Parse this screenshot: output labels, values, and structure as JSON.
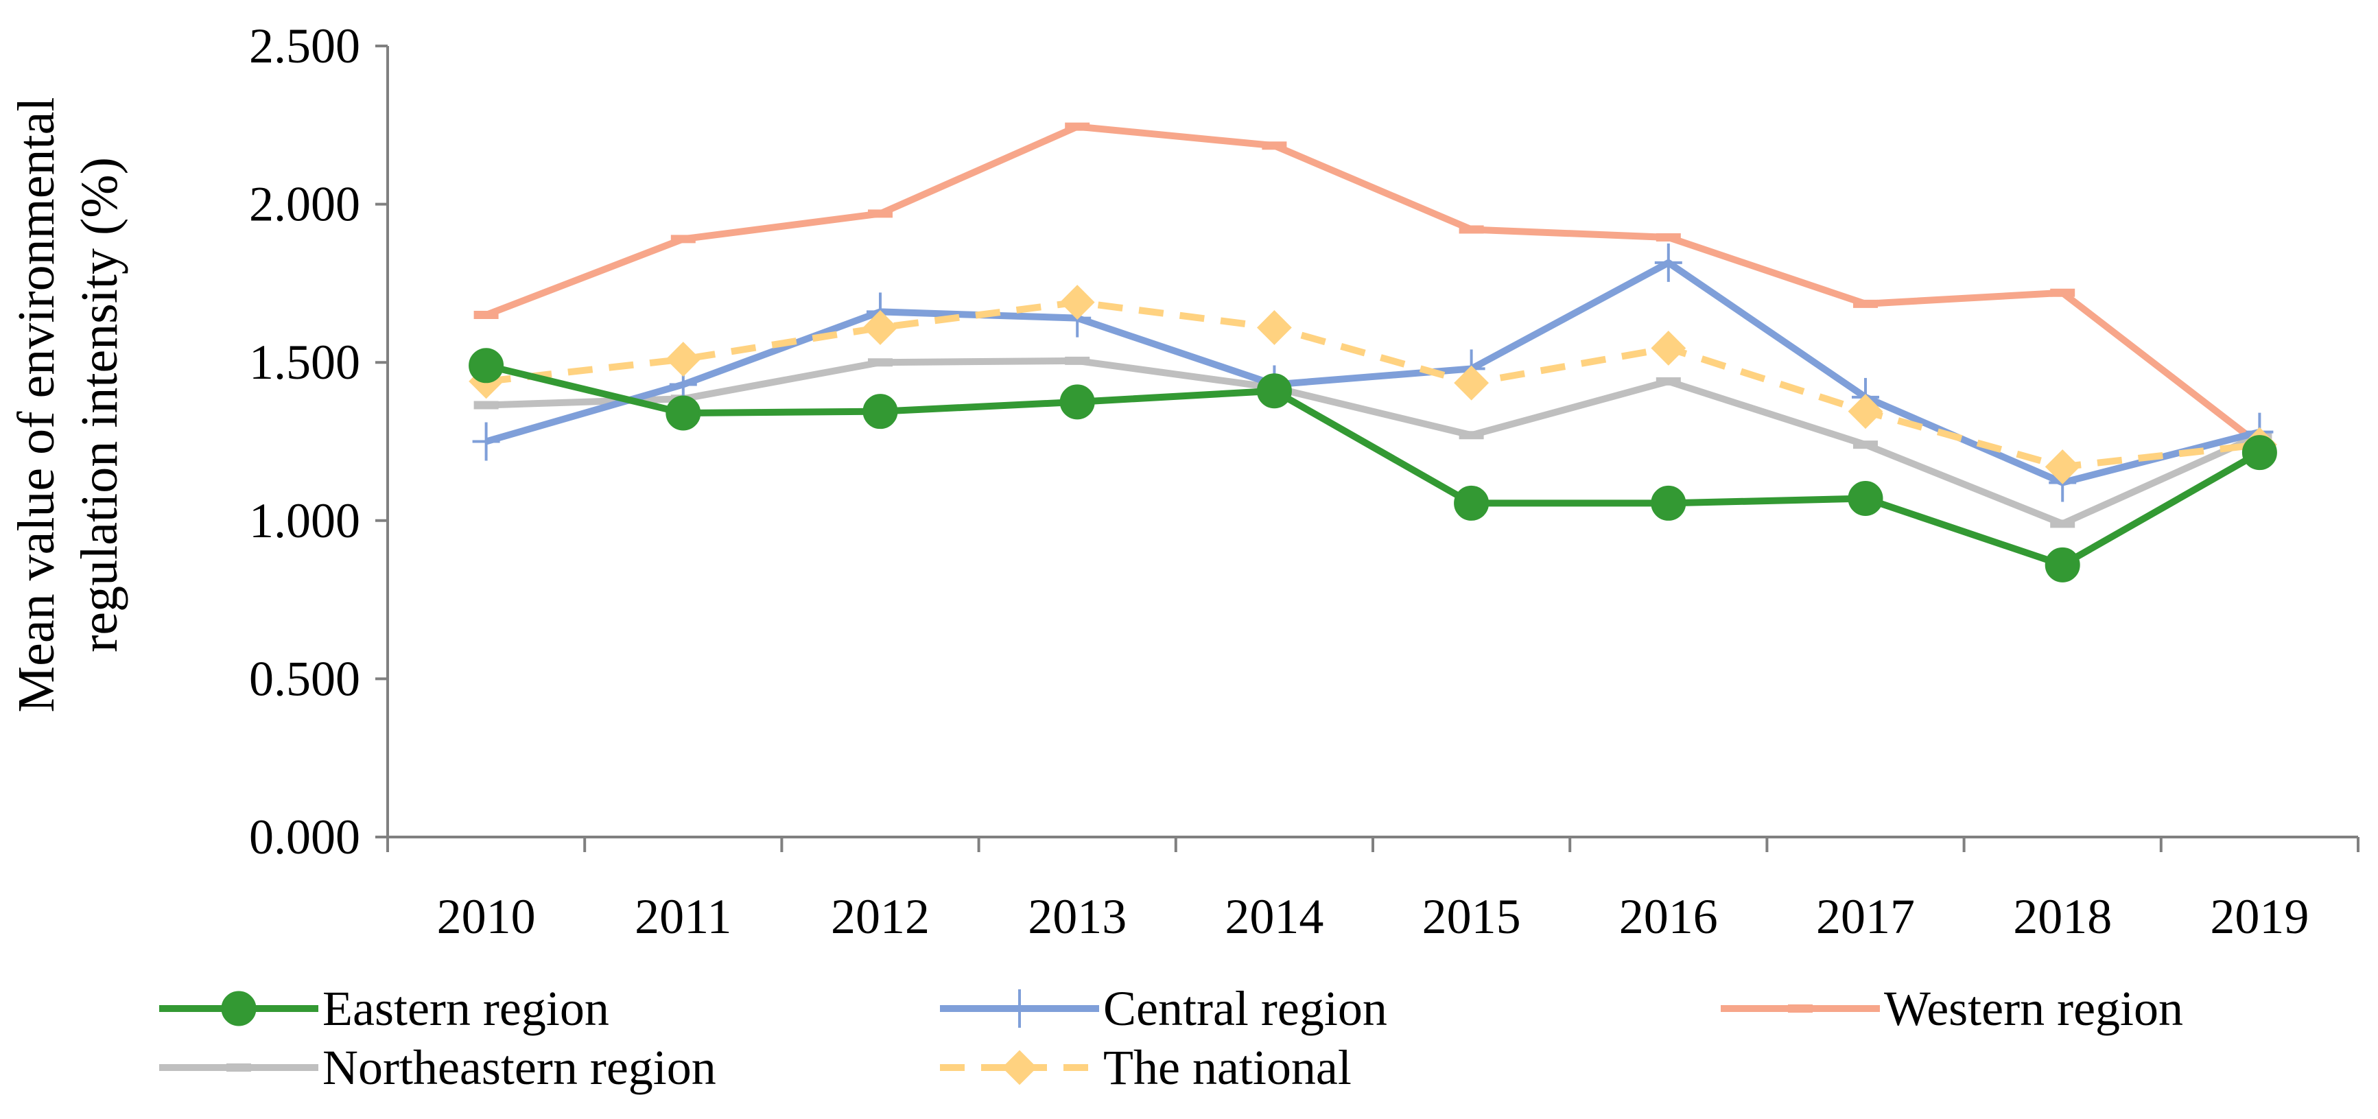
{
  "chart_data": {
    "type": "line",
    "title": "",
    "xlabel": "",
    "ylabel_lines": [
      "Mean value of environmental",
      "regulation intensity (%)"
    ],
    "categories": [
      "2010",
      "2011",
      "2012",
      "2013",
      "2014",
      "2015",
      "2016",
      "2017",
      "2018",
      "2019"
    ],
    "ylim": [
      0,
      2.5
    ],
    "yticks": [
      "0.000",
      "0.500",
      "1.000",
      "1.500",
      "2.000",
      "2.500"
    ],
    "ytick_values": [
      0,
      0.5,
      1.0,
      1.5,
      2.0,
      2.5
    ],
    "grid": false,
    "legend_position": "bottom",
    "series": [
      {
        "name": "Eastern region",
        "color": "#339933",
        "marker": "circle",
        "dash": "solid",
        "values": [
          1.49,
          1.34,
          1.345,
          1.375,
          1.41,
          1.055,
          1.055,
          1.07,
          0.86,
          1.215
        ]
      },
      {
        "name": "Central region",
        "color": "#7F9FD9",
        "marker": "plus",
        "dash": "solid",
        "values": [
          1.25,
          1.43,
          1.66,
          1.64,
          1.43,
          1.48,
          1.815,
          1.39,
          1.12,
          1.28
        ]
      },
      {
        "name": "Western region",
        "color": "#F7A68A",
        "marker": "dash",
        "dash": "solid",
        "values": [
          1.65,
          1.89,
          1.97,
          2.245,
          2.185,
          1.92,
          1.895,
          1.685,
          1.72,
          1.24
        ]
      },
      {
        "name": "Northeastern region",
        "color": "#BFBFBF",
        "marker": "dash",
        "dash": "solid",
        "values": [
          1.365,
          1.385,
          1.5,
          1.505,
          1.42,
          1.27,
          1.44,
          1.24,
          0.99,
          1.27
        ]
      },
      {
        "name": "The national",
        "color": "#FFD280",
        "marker": "diamond",
        "dash": "dashed",
        "values": [
          1.44,
          1.51,
          1.61,
          1.69,
          1.61,
          1.435,
          1.545,
          1.345,
          1.17,
          1.24
        ]
      }
    ]
  }
}
